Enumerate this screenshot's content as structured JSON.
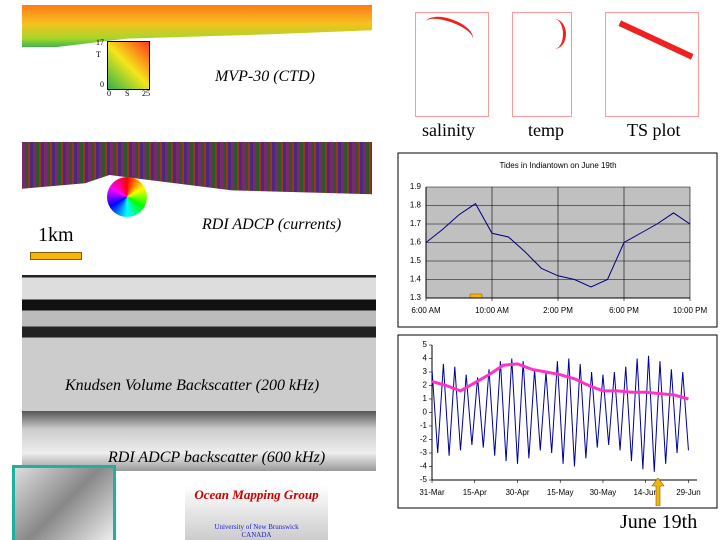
{
  "labels": {
    "mvp": "MVP-30 (CTD)",
    "colorbar_t": "T",
    "colorbar_t_max": "17",
    "colorbar_zero_t": "0",
    "colorbar_zero_s": "0",
    "colorbar_s": "S",
    "colorbar_s_max": "25",
    "currents": "RDI ADCP (currents)",
    "scale": "1km",
    "knudsen": "Knudsen Volume Backscatter (200 kHz)",
    "adcp_backscatter": "RDI ADCP backscatter (600 kHz)",
    "salinity": "salinity",
    "temp": "temp",
    "ts_plot": "TS plot",
    "june": "June 19th",
    "logo_title": "Ocean Mapping Group",
    "logo_univ": "University of New Brunswick",
    "logo_country": "CANADA"
  },
  "chart_data": [
    {
      "type": "line",
      "title": "Tides in Indiantown on June 19th",
      "x": [
        6,
        7,
        8,
        9,
        10,
        11,
        12,
        13,
        14,
        15,
        16,
        17,
        18,
        19,
        20,
        21,
        22
      ],
      "series": [
        {
          "color": "#000080",
          "values": [
            1.6,
            1.67,
            1.75,
            1.81,
            1.65,
            1.63,
            1.55,
            1.46,
            1.42,
            1.4,
            1.36,
            1.4,
            1.6,
            1.65,
            1.7,
            1.76,
            1.7
          ]
        }
      ],
      "xlim": [
        6,
        22
      ],
      "xticks": [
        {
          "value": 6,
          "label": "6:00 AM"
        },
        {
          "value": 10,
          "label": "10:00 AM"
        },
        {
          "value": 14,
          "label": "2:00 PM"
        },
        {
          "value": 18,
          "label": "6:00 PM"
        },
        {
          "value": 22,
          "label": "10:00 PM"
        }
      ],
      "ylim": [
        1.3,
        1.9
      ],
      "yticks": [
        1.3,
        1.4,
        1.5,
        1.6,
        1.7,
        1.8,
        1.9
      ],
      "grid": true
    },
    {
      "type": "line",
      "series": [
        {
          "color": "#000099",
          "x": [
            0,
            2,
            4,
            6,
            8,
            10,
            12,
            14,
            16,
            18,
            20,
            22,
            24,
            26,
            28,
            30,
            32,
            34,
            36,
            38,
            40,
            42,
            44,
            46,
            48,
            50,
            52,
            54,
            56,
            58,
            60,
            62,
            64,
            66,
            68,
            70,
            72,
            74,
            76,
            78,
            80,
            82,
            84,
            86,
            88,
            90
          ],
          "values": [
            3.2,
            -3.0,
            3.6,
            -3.2,
            3.4,
            -2.8,
            2.8,
            -2.4,
            2.6,
            -2.6,
            3.2,
            -3.2,
            3.8,
            -3.6,
            4.0,
            -3.8,
            3.8,
            -3.4,
            3.2,
            -2.8,
            3.0,
            -3.0,
            3.8,
            -3.8,
            4.0,
            -4.0,
            3.6,
            -3.4,
            3.0,
            -2.6,
            2.8,
            -2.4,
            3.0,
            -2.8,
            3.4,
            -3.6,
            4.0,
            -4.2,
            4.2,
            -4.4,
            3.8,
            -3.8,
            3.2,
            -3.0,
            3.0,
            -2.8
          ]
        },
        {
          "color": "#ff33cc",
          "x": [
            0,
            5,
            10,
            15,
            20,
            25,
            30,
            35,
            40,
            45,
            50,
            55,
            60,
            65,
            70,
            75,
            80,
            85,
            90
          ],
          "values": [
            2.3,
            2.0,
            1.6,
            2.2,
            2.8,
            3.5,
            3.6,
            3.2,
            3.0,
            2.8,
            2.5,
            2.0,
            1.6,
            1.6,
            1.5,
            1.5,
            1.4,
            1.3,
            1.0
          ]
        }
      ],
      "xlim": [
        0,
        93
      ],
      "xticks": [
        {
          "value": 0,
          "label": "31-Mar"
        },
        {
          "value": 15,
          "label": "15-Apr"
        },
        {
          "value": 30,
          "label": "30-Apr"
        },
        {
          "value": 45,
          "label": "15-May"
        },
        {
          "value": 60,
          "label": "30-May"
        },
        {
          "value": 75,
          "label": "14-Jun"
        },
        {
          "value": 90,
          "label": "29-Jun"
        }
      ],
      "ylim": [
        -5,
        5
      ],
      "yticks": [
        -5,
        -4,
        -3,
        -2,
        -1,
        0,
        1,
        2,
        3,
        4,
        5
      ],
      "grid": false
    }
  ]
}
